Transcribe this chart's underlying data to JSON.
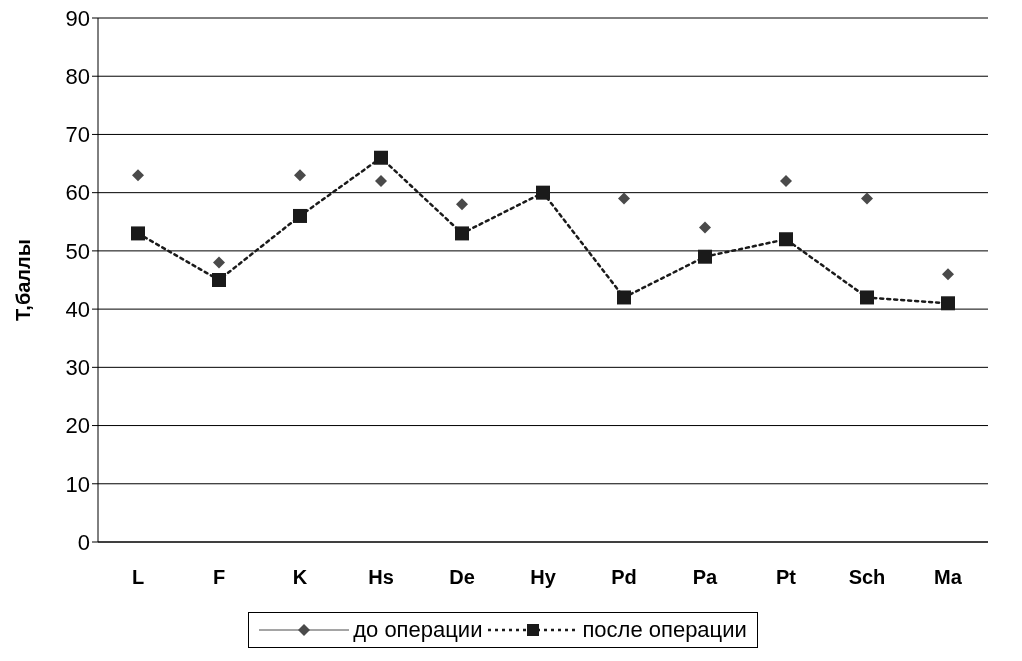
{
  "chart_data": {
    "type": "line",
    "ylabel": "Т,баллы",
    "categories": [
      "L",
      "F",
      "K",
      "Hs",
      "De",
      "Hy",
      "Pd",
      "Pa",
      "Pt",
      "Sch",
      "Ma"
    ],
    "series": [
      {
        "name": "до операции",
        "type": "scatter",
        "color": "#4a4a4a",
        "marker": "diamond",
        "values": [
          63,
          48,
          63,
          62,
          58,
          null,
          59,
          54,
          62,
          59,
          46
        ]
      },
      {
        "name": "после операции",
        "color": "#1a1a1a",
        "marker": "square",
        "line_style": "dotted",
        "values": [
          53,
          45,
          56,
          66,
          53,
          60,
          42,
          49,
          52,
          42,
          41
        ]
      }
    ],
    "ylim": [
      0,
      90
    ],
    "yticks": [
      0,
      10,
      20,
      30,
      40,
      50,
      60,
      70,
      80,
      90
    ],
    "grid": "y",
    "legend": "bottom"
  }
}
